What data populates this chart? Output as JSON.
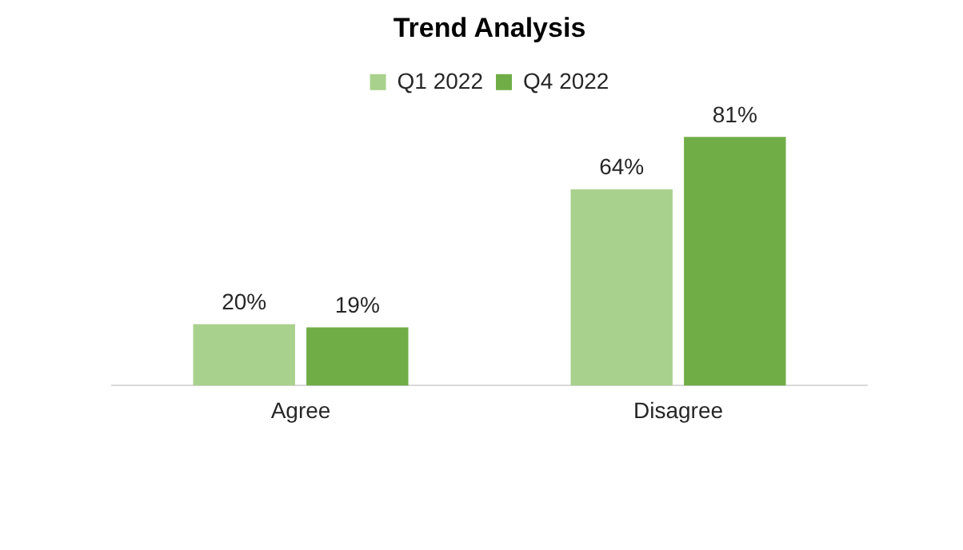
{
  "chart_data": {
    "type": "bar",
    "title": "Trend Analysis",
    "categories": [
      "Agree",
      "Disagree"
    ],
    "series": [
      {
        "name": "Q1 2022",
        "color": "#a9d18e",
        "values": [
          20,
          64
        ],
        "value_labels": [
          "20%",
          "64%"
        ]
      },
      {
        "name": "Q4 2022",
        "color": "#70ad47",
        "values": [
          19,
          81
        ],
        "value_labels": [
          "19%",
          "81%"
        ]
      }
    ],
    "legend": "top",
    "grid": false
  }
}
